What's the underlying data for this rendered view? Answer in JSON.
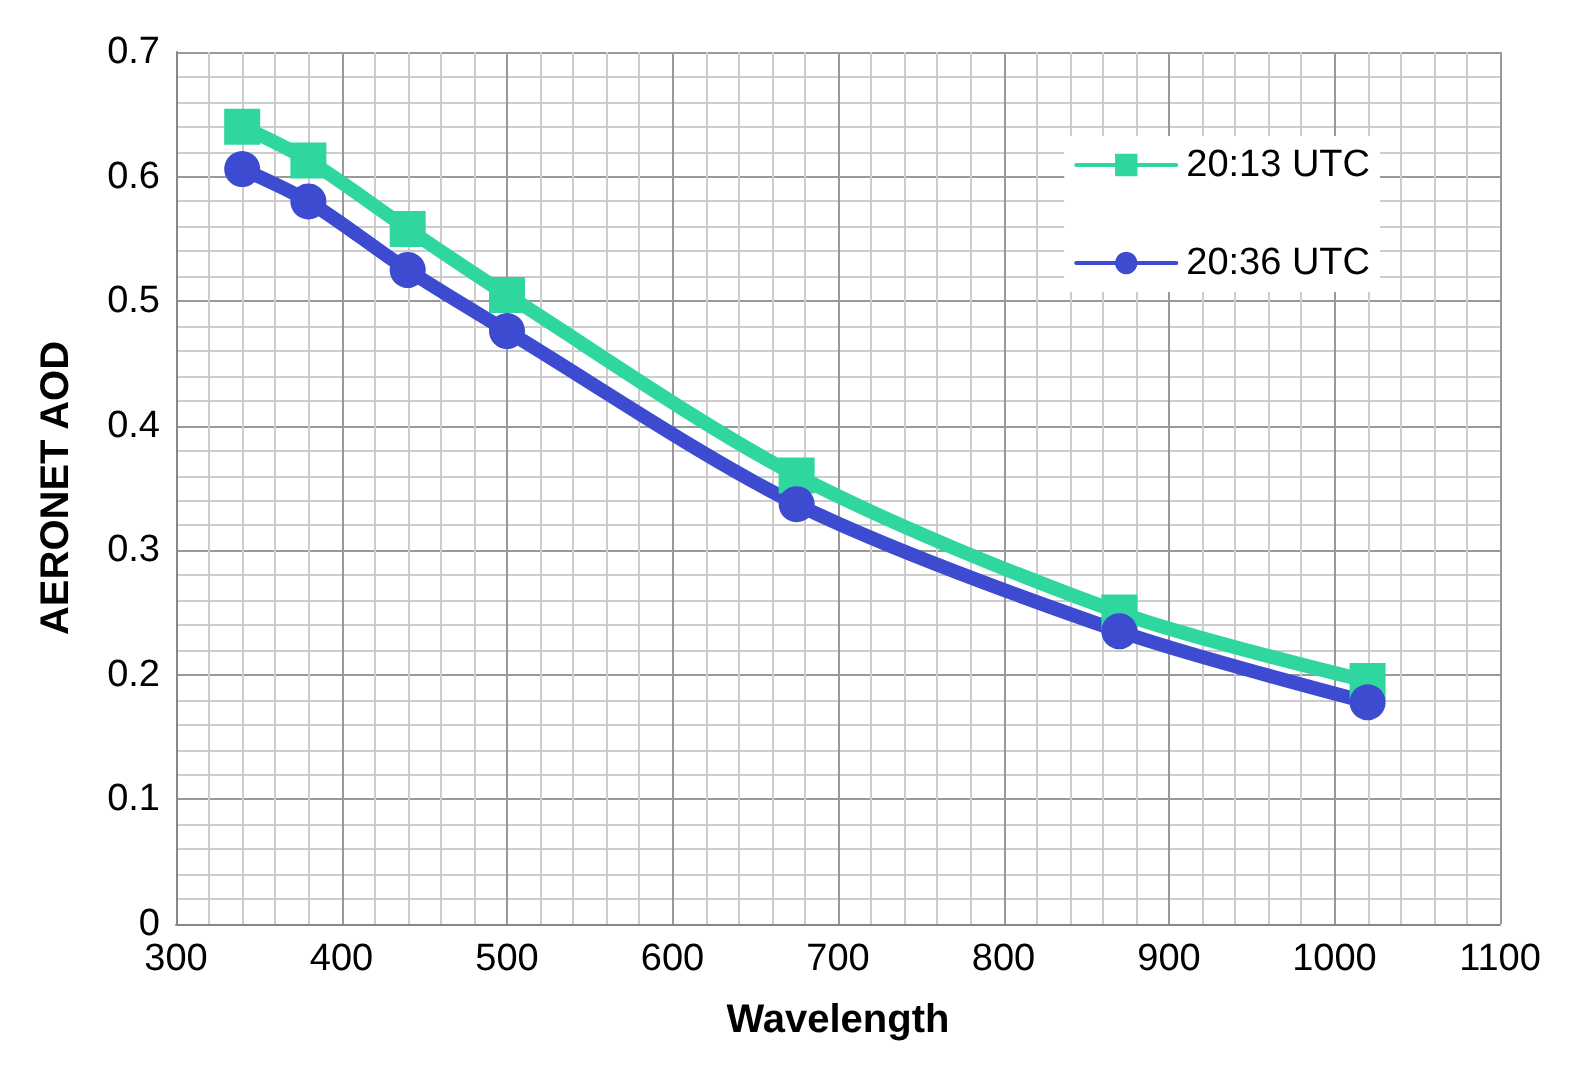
{
  "chart_data": {
    "type": "line",
    "xlabel": "Wavelength",
    "ylabel": "AERONET AOD",
    "x": [
      340,
      380,
      440,
      500,
      675,
      870,
      1020
    ],
    "series": [
      {
        "name": "20:13 UTC",
        "color": "#2fd6a0",
        "marker": "square",
        "values": [
          0.64,
          0.613,
          0.558,
          0.505,
          0.36,
          0.25,
          0.195
        ]
      },
      {
        "name": "20:36 UTC",
        "color": "#3c4bd0",
        "marker": "circle",
        "values": [
          0.606,
          0.58,
          0.525,
          0.476,
          0.337,
          0.235,
          0.178
        ]
      }
    ],
    "xlim": [
      300,
      1100
    ],
    "xticks": [
      300,
      400,
      500,
      600,
      700,
      800,
      900,
      1000,
      1100
    ],
    "ylim": [
      0,
      0.7
    ],
    "yticks": [
      0,
      0.1,
      0.2,
      0.3,
      0.4,
      0.5,
      0.6,
      0.7
    ],
    "grid": true,
    "legend": "top right",
    "line_style": "solid"
  }
}
